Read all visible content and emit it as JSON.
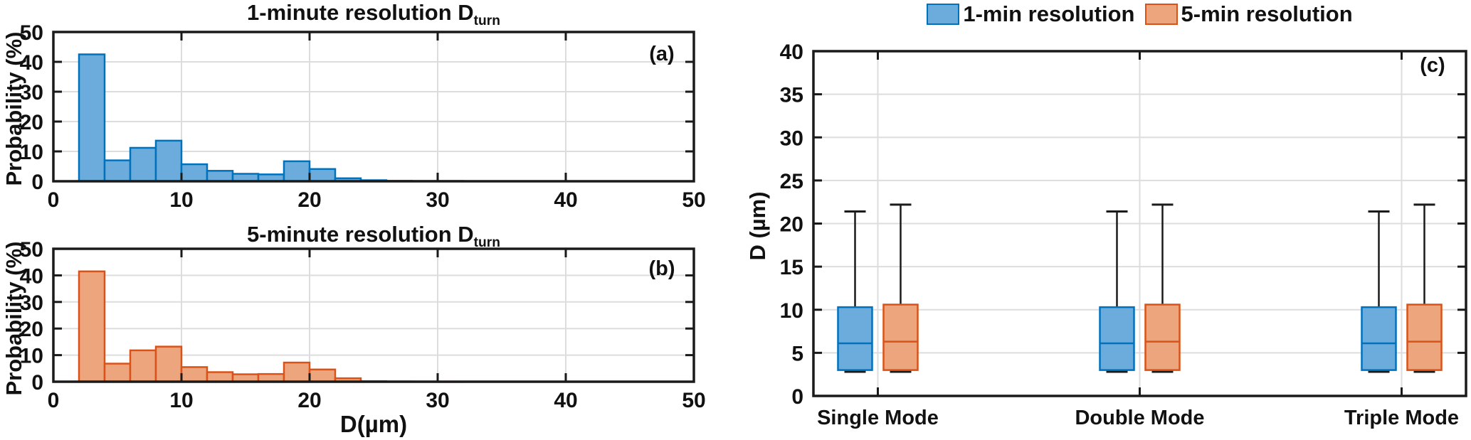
{
  "figure": {
    "panel_a": {
      "title_main": "1-minute resolution D",
      "title_sub": "turn",
      "corner_label": "(a)",
      "ylabel": "Probability (%)"
    },
    "panel_b": {
      "title_main": "5-minute resolution D",
      "title_sub": "turn",
      "corner_label": "(b)",
      "ylabel": "Probability (%)",
      "xlabel": "D(µm)"
    },
    "panel_c": {
      "corner_label": "(c)",
      "ylabel": "D (µm)",
      "legend": [
        {
          "label": "1-min resolution",
          "fill": "#6CACDC",
          "edge": "#0072BD"
        },
        {
          "label": "5-min resolution",
          "fill": "#EDA57E",
          "edge": "#D95319"
        }
      ]
    }
  },
  "colors": {
    "blue_fill": "#6CACDC",
    "blue_edge": "#0072BD",
    "orange_fill": "#EDA57E",
    "orange_edge": "#D95319",
    "grid": "#DDDDDD",
    "axis": "#1A1A1A",
    "text": "#111111"
  },
  "chart_data": [
    {
      "type": "bar",
      "subtype": "histogram",
      "panel": "a",
      "title": "1-minute resolution D_turn",
      "xlabel": "",
      "ylabel": "Probability (%)",
      "xlim": [
        0,
        50
      ],
      "ylim": [
        0,
        50
      ],
      "xticks": [
        0,
        10,
        20,
        30,
        40,
        50
      ],
      "yticks": [
        0,
        10,
        20,
        30,
        40,
        50
      ],
      "grid": true,
      "bin_start": 2,
      "bin_width": 2,
      "values": [
        42.5,
        7.0,
        11.2,
        13.6,
        5.7,
        3.5,
        2.5,
        2.3,
        6.7,
        4.1,
        1.0,
        0.35,
        0.15,
        0.1,
        0.1,
        0.05
      ],
      "fill": "#6CACDC",
      "edge": "#0072BD"
    },
    {
      "type": "bar",
      "subtype": "histogram",
      "panel": "b",
      "title": "5-minute resolution D_turn",
      "xlabel": "D(µm)",
      "ylabel": "Probability (%)",
      "xlim": [
        0,
        50
      ],
      "ylim": [
        0,
        50
      ],
      "xticks": [
        0,
        10,
        20,
        30,
        40,
        50
      ],
      "yticks": [
        0,
        10,
        20,
        30,
        40,
        50
      ],
      "grid": true,
      "bin_start": 2,
      "bin_width": 2,
      "values": [
        41.5,
        6.8,
        11.8,
        13.2,
        5.5,
        3.6,
        2.8,
        2.9,
        7.2,
        4.6,
        1.3,
        0.2,
        0.1,
        0.08,
        0.05
      ],
      "fill": "#EDA57E",
      "edge": "#D95319"
    },
    {
      "type": "boxplot",
      "panel": "c",
      "title": "",
      "ylabel": "D (µm)",
      "ylim": [
        0,
        40
      ],
      "yticks": [
        0,
        5,
        10,
        15,
        20,
        25,
        30,
        35,
        40
      ],
      "grid": true,
      "legend_position": "top",
      "categories": [
        "Single Mode",
        "Double Mode",
        "Triple Mode"
      ],
      "series": [
        {
          "name": "1-min resolution",
          "fill": "#6CACDC",
          "edge": "#0072BD",
          "boxes": [
            {
              "whisker_low": 2.8,
              "q1": 3.0,
              "median": 6.1,
              "q3": 10.3,
              "whisker_high": 21.4
            },
            {
              "whisker_low": 2.8,
              "q1": 3.0,
              "median": 6.1,
              "q3": 10.3,
              "whisker_high": 21.4
            },
            {
              "whisker_low": 2.8,
              "q1": 3.0,
              "median": 6.1,
              "q3": 10.3,
              "whisker_high": 21.4
            }
          ]
        },
        {
          "name": "5-min resolution",
          "fill": "#EDA57E",
          "edge": "#D95319",
          "boxes": [
            {
              "whisker_low": 2.8,
              "q1": 3.0,
              "median": 6.3,
              "q3": 10.6,
              "whisker_high": 22.2
            },
            {
              "whisker_low": 2.8,
              "q1": 3.0,
              "median": 6.3,
              "q3": 10.6,
              "whisker_high": 22.2
            },
            {
              "whisker_low": 2.8,
              "q1": 3.0,
              "median": 6.3,
              "q3": 10.6,
              "whisker_high": 22.2
            }
          ]
        }
      ]
    }
  ]
}
